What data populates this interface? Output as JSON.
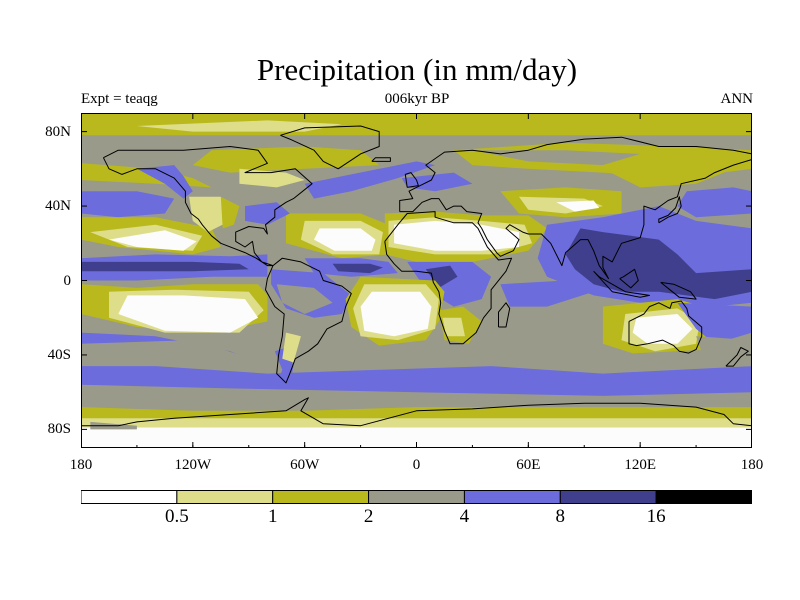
{
  "title": "Precipitation (in mm/day)",
  "subtitle_left": "Expt = teaqg",
  "subtitle_center": "006kyr BP",
  "subtitle_right": "ANN",
  "y_ticks": [
    {
      "label": "80N",
      "lat": 80
    },
    {
      "label": "40N",
      "lat": 40
    },
    {
      "label": "0",
      "lat": 0
    },
    {
      "label": "40S",
      "lat": -40
    },
    {
      "label": "80S",
      "lat": -80
    }
  ],
  "x_ticks": [
    {
      "label": "180",
      "lon": -180
    },
    {
      "label": "120W",
      "lon": -120
    },
    {
      "label": "60W",
      "lon": -60
    },
    {
      "label": "0",
      "lon": 0
    },
    {
      "label": "60E",
      "lon": 60
    },
    {
      "label": "120E",
      "lon": 120
    },
    {
      "label": "180",
      "lon": 180
    }
  ],
  "colorbar": {
    "colors": [
      "#ffffff",
      "#dede8a",
      "#b9b91e",
      "#9a9a8a",
      "#6c6cdc",
      "#3f3f8e",
      "#000000"
    ],
    "levels": [
      "0.5",
      "1",
      "2",
      "4",
      "8",
      "16"
    ]
  },
  "map_colors": {
    "white": "#fcfcfc",
    "pale": "#dede8a",
    "olive": "#b9b91e",
    "gray": "#9a9a8a",
    "blue": "#6c6cdc",
    "navy": "#3f3f8e",
    "coast": "#000000"
  }
}
